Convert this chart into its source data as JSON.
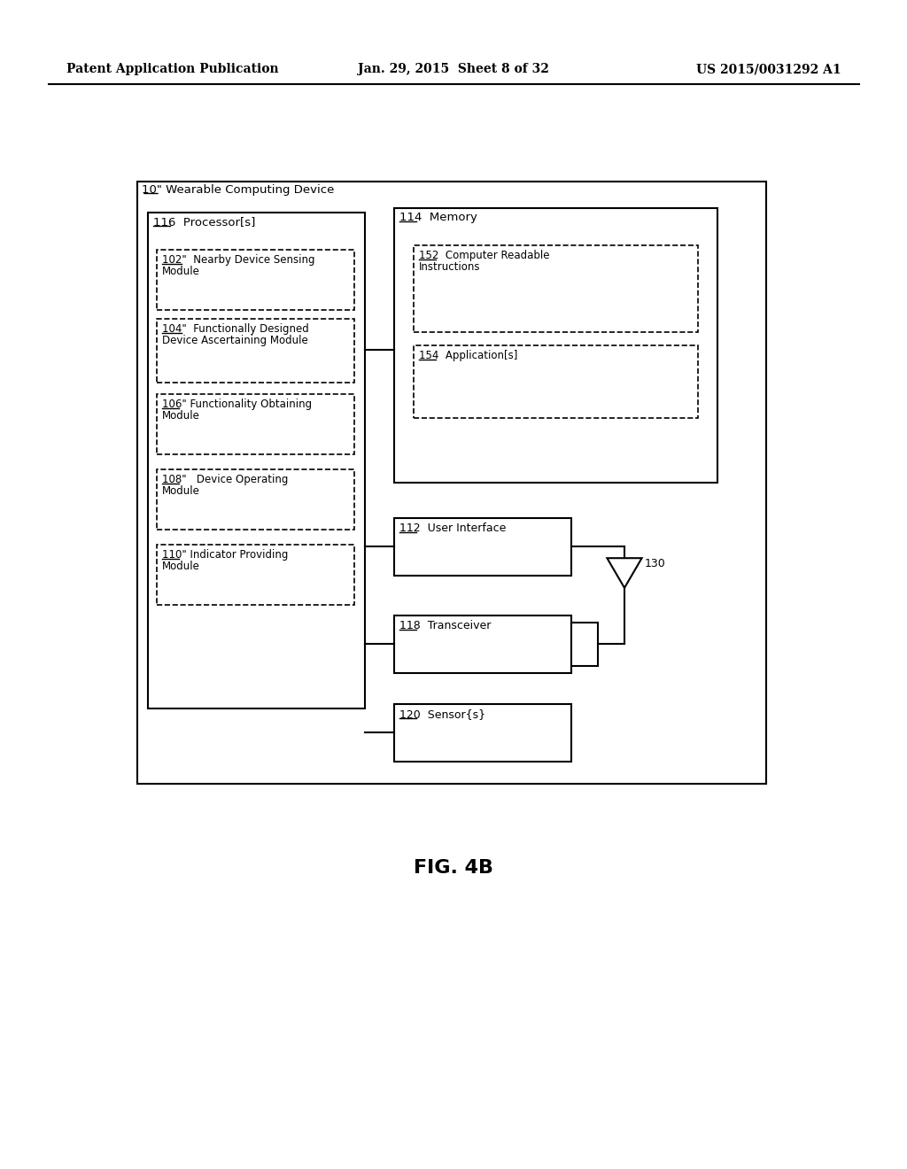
{
  "bg_color": "#ffffff",
  "header_left": "Patent Application Publication",
  "header_mid": "Jan. 29, 2015  Sheet 8 of 32",
  "header_right": "US 2015/0031292 A1",
  "fig_label": "FIG. 4B",
  "outer_box_label": "10\" Wearable Computing Device",
  "processor_box_label": "116  Processor[s]",
  "modules": [
    {
      "label": "102\"  Nearby Device Sensing\nModule"
    },
    {
      "label": "104\"  Functionally Designed\nDevice Ascertaining Module"
    },
    {
      "label": "106\" Functionality Obtaining\nModule"
    },
    {
      "label": "108\"   Device Operating\nModule"
    },
    {
      "label": "110\" Indicator Providing\nModule"
    }
  ],
  "memory_box_label": "114  Memory",
  "memory_sub": [
    {
      "label": "152  Computer Readable\nInstructions"
    },
    {
      "label": "154  Application[s]"
    }
  ],
  "right_boxes": [
    {
      "label": "112  User Interface"
    },
    {
      "label": "118  Transceiver"
    },
    {
      "label": "120  Sensor{s}"
    }
  ],
  "antenna_label": "130"
}
